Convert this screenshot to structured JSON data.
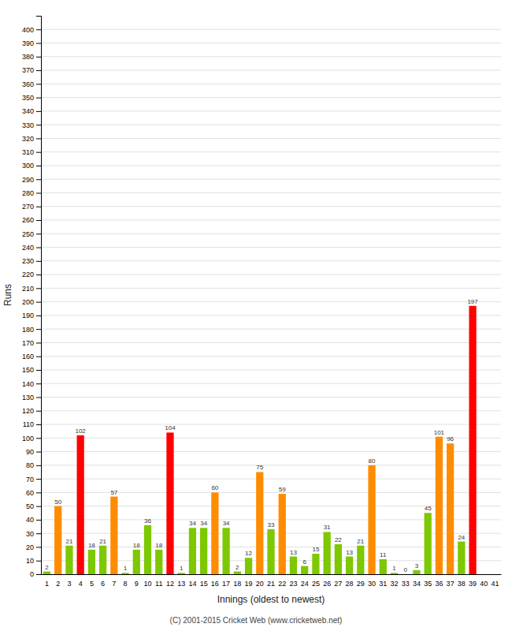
{
  "chart_data": {
    "type": "bar",
    "xlabel": "Innings (oldest to newest)",
    "ylabel": "Runs",
    "annotations": [
      "(C) 2001-2015 Cricket Web (www.cricketweb.net)"
    ],
    "categories": [
      "1",
      "2",
      "3",
      "4",
      "5",
      "6",
      "7",
      "8",
      "9",
      "10",
      "11",
      "12",
      "13",
      "14",
      "15",
      "16",
      "17",
      "18",
      "19",
      "20",
      "21",
      "22",
      "23",
      "24",
      "25",
      "26",
      "27",
      "28",
      "29",
      "30",
      "31",
      "32",
      "33",
      "34",
      "35",
      "36",
      "37",
      "38",
      "39",
      "40",
      "41"
    ],
    "values": [
      2,
      50,
      21,
      102,
      18,
      21,
      57,
      1,
      18,
      36,
      18,
      104,
      1,
      34,
      34,
      60,
      34,
      2,
      12,
      75,
      33,
      59,
      13,
      6,
      15,
      31,
      22,
      13,
      21,
      80,
      11,
      1,
      0,
      3,
      45,
      101,
      96,
      24,
      197,
      null,
      null
    ],
    "colors": [
      "#7dc800",
      "#ff8c00",
      "#7dc800",
      "#ff0000",
      "#7dc800",
      "#7dc800",
      "#ff8c00",
      "#7dc800",
      "#7dc800",
      "#7dc800",
      "#7dc800",
      "#ff0000",
      "#7dc800",
      "#7dc800",
      "#7dc800",
      "#ff8c00",
      "#7dc800",
      "#7dc800",
      "#7dc800",
      "#ff8c00",
      "#7dc800",
      "#ff8c00",
      "#7dc800",
      "#7dc800",
      "#7dc800",
      "#7dc800",
      "#7dc800",
      "#7dc800",
      "#7dc800",
      "#ff8c00",
      "#7dc800",
      "#7dc800",
      "#7dc800",
      "#7dc800",
      "#7dc800",
      "#ff8c00",
      "#ff8c00",
      "#7dc800",
      "#ff0000",
      null,
      null
    ],
    "ylim": [
      0,
      410
    ],
    "yticks": [
      0,
      10,
      20,
      30,
      40,
      50,
      60,
      70,
      80,
      90,
      100,
      110,
      120,
      130,
      140,
      150,
      160,
      170,
      180,
      190,
      200,
      210,
      220,
      230,
      240,
      250,
      260,
      270,
      280,
      290,
      300,
      310,
      320,
      330,
      340,
      350,
      360,
      370,
      380,
      390,
      400
    ],
    "grid": true,
    "data_labels": true
  }
}
